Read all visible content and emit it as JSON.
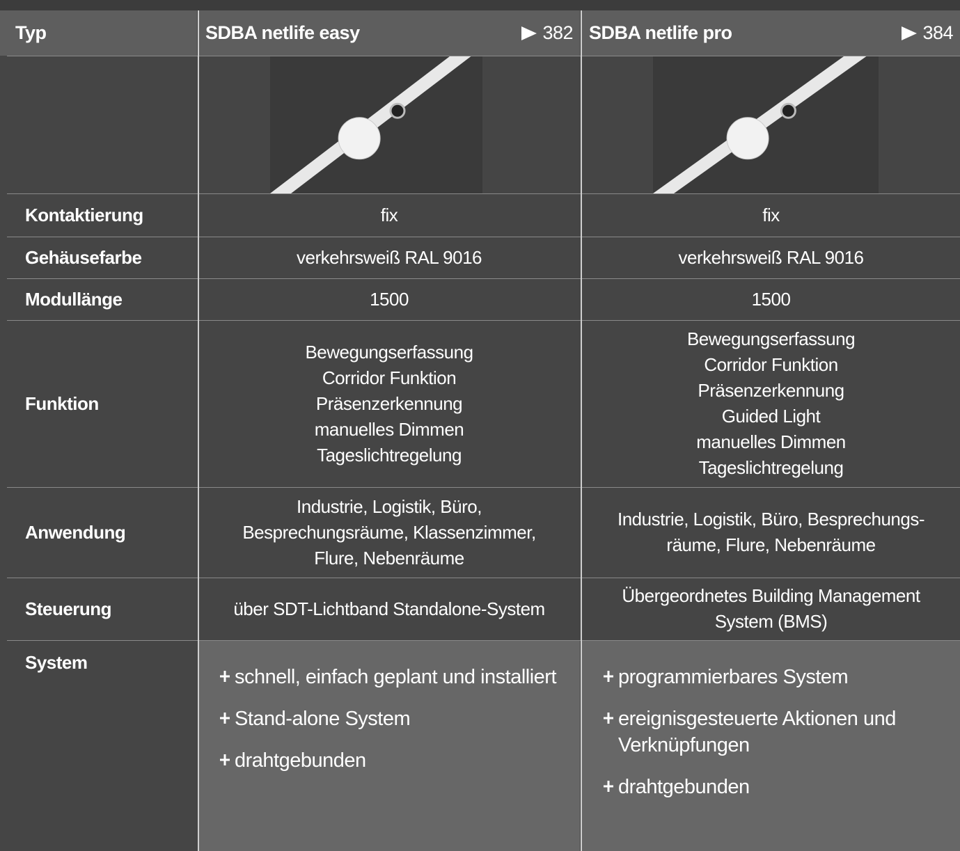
{
  "header": {
    "label": "Typ",
    "columns": [
      {
        "name": "SDBA netlife easy",
        "page": "382"
      },
      {
        "name": "SDBA netlife pro",
        "page": "384"
      }
    ]
  },
  "rows": [
    {
      "label": "Kontaktierung",
      "values": [
        [
          "fix"
        ],
        [
          "fix"
        ]
      ]
    },
    {
      "label": "Gehäusefarbe",
      "values": [
        [
          "verkehrsweiß RAL 9016"
        ],
        [
          "verkehrsweiß RAL 9016"
        ]
      ]
    },
    {
      "label": "Modullänge",
      "values": [
        [
          "1500"
        ],
        [
          "1500"
        ]
      ]
    },
    {
      "label": "Funktion",
      "values": [
        [
          "Bewegungserfassung",
          "Corridor Funktion",
          "Präsenzerkennung",
          "manuelles Dimmen",
          "Tageslichtregelung"
        ],
        [
          "Bewegungserfassung",
          "Corridor Funktion",
          "Präsenzerkennung",
          "Guided Light",
          "manuelles Dimmen",
          "Tageslichtregelung"
        ]
      ]
    },
    {
      "label": "Anwendung",
      "values": [
        [
          "Industrie, Logistik, Büro,",
          "Besprechungsräume, Klassenzimmer,",
          "Flure, Nebenräume"
        ],
        [
          "Industrie, Logistik, Büro, Besprechungs-",
          "räume, Flure, Nebenräume"
        ]
      ]
    },
    {
      "label": "Steuerung",
      "values": [
        [
          "über SDT-Lichtband Standalone-System"
        ],
        [
          "Übergeordnetes Building Management",
          "System (BMS)"
        ]
      ]
    }
  ],
  "system": {
    "label": "System",
    "values": [
      [
        "schnell, einfach geplant und installiert",
        "Stand-alone System",
        "drahtgebunden"
      ],
      [
        "programmierbares System",
        "ereignisgesteuerte Aktionen und Verknüpfungen",
        "drahtgebunden"
      ]
    ]
  }
}
